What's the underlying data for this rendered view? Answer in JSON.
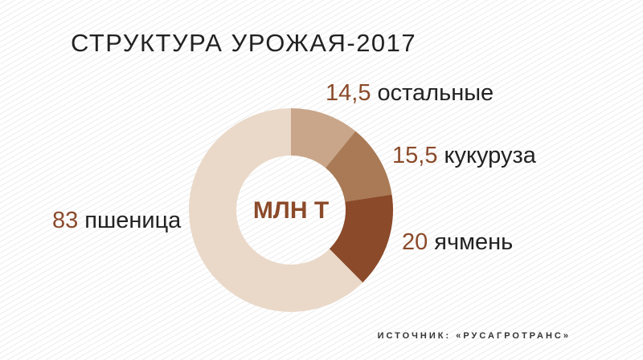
{
  "chart_data": {
    "type": "donut",
    "title": "СТРУКТУРА УРОЖАЯ-2017",
    "center_label": "МЛН Т",
    "categories": [
      "остальные",
      "кукуруза",
      "ячмень",
      "пшеница"
    ],
    "values": [
      14.5,
      15.5,
      20,
      83
    ],
    "value_labels": [
      "14,5",
      "15,5",
      "20",
      "83"
    ],
    "colors": [
      "#c9a68a",
      "#a97a55",
      "#8b4a2a",
      "#ead9c9"
    ],
    "source": "ИСТОЧНИК: «РУСАГРОТРАНС»"
  }
}
